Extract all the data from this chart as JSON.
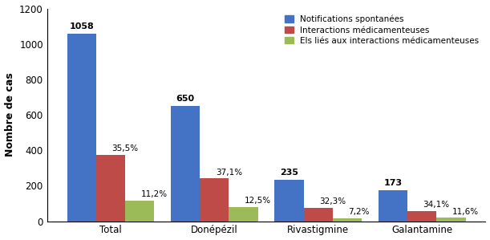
{
  "categories": [
    "Total",
    "Donépézil",
    "Rivastigmine",
    "Galantamine"
  ],
  "series": {
    "Notifications spontanées": [
      1058,
      650,
      235,
      173
    ],
    "Interactions médicamenteuses": [
      375,
      241,
      76,
      59
    ],
    "Els liés aux interactions médicamenteuses": [
      118,
      81,
      17,
      20
    ]
  },
  "labels_blue": [
    "1058",
    "650",
    "235",
    "173"
  ],
  "labels_red": [
    "35,5%",
    "37,1%",
    "32,3%",
    "34,1%"
  ],
  "labels_green": [
    "11,2%",
    "12,5%",
    "7,2%",
    "11,6%"
  ],
  "colors": {
    "Notifications spontanées": "#4472C4",
    "Interactions médicamenteuses": "#BE4B48",
    "Els liés aux interactions médicamenteuses": "#9BBB59"
  },
  "ylabel": "Nombre de cas",
  "ylim": [
    0,
    1200
  ],
  "yticks": [
    0,
    200,
    400,
    600,
    800,
    1000,
    1200
  ],
  "bar_width": 0.28,
  "legend_labels": [
    "Notifications spontanées",
    "Interactions médicamenteuses",
    "Els liés aux interactions médicamenteuses"
  ]
}
